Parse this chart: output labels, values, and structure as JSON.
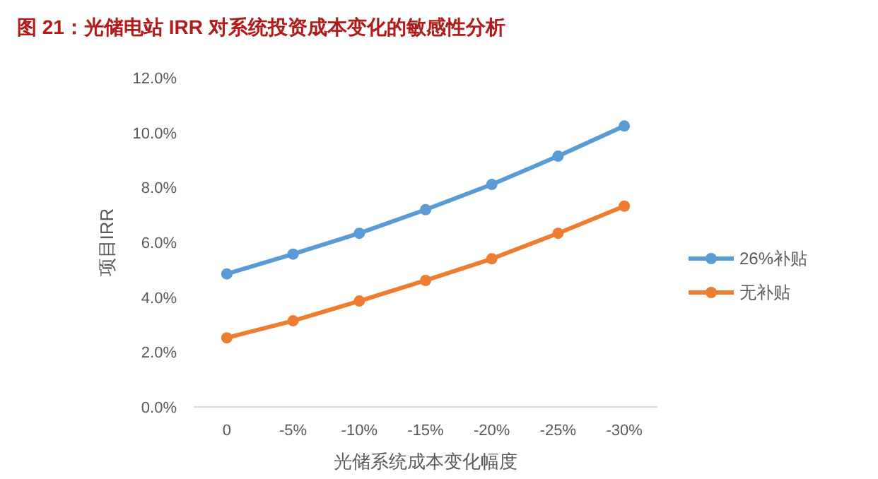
{
  "chart_data": {
    "type": "line",
    "title": "图 21：光储电站 IRR 对系统投资成本变化的敏感性分析",
    "xlabel": "光储系统成本变化幅度",
    "ylabel": "项目IRR",
    "categories": [
      "0",
      "-5%",
      "-10%",
      "-15%",
      "-20%",
      "-25%",
      "-30%"
    ],
    "series": [
      {
        "name": "26%补贴",
        "color": "#5b9bd5",
        "values": [
          4.85,
          5.57,
          6.33,
          7.19,
          8.11,
          9.14,
          10.24
        ]
      },
      {
        "name": "无补贴",
        "color": "#ed7d31",
        "values": [
          2.52,
          3.14,
          3.86,
          4.61,
          5.4,
          6.33,
          7.32
        ]
      }
    ],
    "ylim": [
      0,
      12
    ],
    "yticks": [
      {
        "value": 0,
        "label": "0.0%"
      },
      {
        "value": 2,
        "label": "2.0%"
      },
      {
        "value": 4,
        "label": "4.0%"
      },
      {
        "value": 6,
        "label": "6.0%"
      },
      {
        "value": 8,
        "label": "8.0%"
      },
      {
        "value": 10,
        "label": "10.0%"
      },
      {
        "value": 12,
        "label": "12.0%"
      }
    ],
    "grid": false,
    "legend": "right",
    "marker": "circle",
    "line_style": "solid"
  }
}
